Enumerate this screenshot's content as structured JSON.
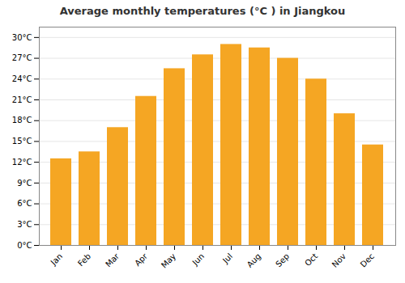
{
  "chart_data": {
    "type": "bar",
    "title": "Average monthly temperatures (°C ) in Jiangkou",
    "categories": [
      "Jan",
      "Feb",
      "Mar",
      "Apr",
      "May",
      "Jun",
      "Jul",
      "Aug",
      "Sep",
      "Oct",
      "Nov",
      "Dec"
    ],
    "values": [
      12.5,
      13.5,
      17.0,
      21.5,
      25.5,
      27.5,
      29.0,
      28.5,
      27.0,
      24.0,
      19.0,
      14.5
    ],
    "color": "#F5A623",
    "ylim": [
      0,
      31.5
    ],
    "yticks": [
      {
        "value": 0,
        "label": "0°C"
      },
      {
        "value": 3,
        "label": "3°C"
      },
      {
        "value": 6,
        "label": "6°C"
      },
      {
        "value": 9,
        "label": "9°C"
      },
      {
        "value": 12,
        "label": "12°C"
      },
      {
        "value": 15,
        "label": "15°C"
      },
      {
        "value": 18,
        "label": "18°C"
      },
      {
        "value": 21,
        "label": "21°C"
      },
      {
        "value": 24,
        "label": "24°C"
      },
      {
        "value": 27,
        "label": "27°C"
      },
      {
        "value": 30,
        "label": "30°C"
      }
    ],
    "grid": true
  }
}
